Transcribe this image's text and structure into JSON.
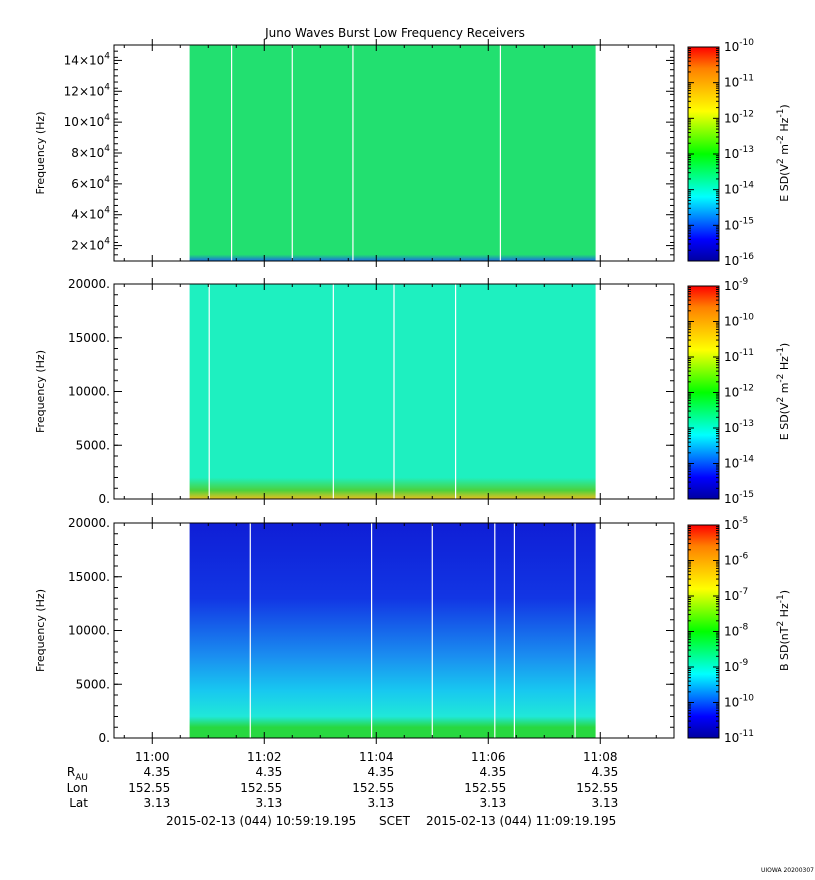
{
  "title": "Juno Waves Burst Low Frequency Receivers",
  "colors": {
    "panel1_fill": "#22e070",
    "panel2_fill": "#1ef0c0",
    "panel2_band": "#4bd23c",
    "panel3_top": "#0f1ed6",
    "panel3_mid": "#18c8f0",
    "panel3_band": "#28d840",
    "gap_line": "#ffffff",
    "colorbar_stops": [
      "#0000a0",
      "#0000ff",
      "#0080ff",
      "#00ffff",
      "#00ff80",
      "#00ff00",
      "#80ff00",
      "#ffff00",
      "#ffc000",
      "#ff8000",
      "#ff0000"
    ]
  },
  "chart_data": [
    {
      "type": "heatmap",
      "ylabel": "Frequency (Hz)",
      "y_ticks": [
        {
          "value": 20000,
          "base": "2×10",
          "exp": "4"
        },
        {
          "value": 40000,
          "base": "4×10",
          "exp": "4"
        },
        {
          "value": 60000,
          "base": "6×10",
          "exp": "4"
        },
        {
          "value": 80000,
          "base": "8×10",
          "exp": "4"
        },
        {
          "value": 100000,
          "base": "10×10",
          "exp": "4"
        },
        {
          "value": 120000,
          "base": "12×10",
          "exp": "4"
        },
        {
          "value": 140000,
          "base": "14×10",
          "exp": "4"
        }
      ],
      "ylim": [
        10000,
        150000
      ],
      "colorbar_label": "E SD(V^2 m^-2 Hz^-1)",
      "colorbar_label_parts": [
        {
          "t": "E SD(V"
        },
        {
          "t": "2",
          "sup": true
        },
        {
          "t": " m"
        },
        {
          "t": "-2",
          "sup": true
        },
        {
          "t": " Hz"
        },
        {
          "t": "-1",
          "sup": true
        },
        {
          "t": ")"
        }
      ],
      "colorbar_exponents": [
        "-16",
        "-15",
        "-14",
        "-13",
        "-12",
        "-11",
        "-10"
      ],
      "data_span": [
        "11:00:40",
        "11:07:55"
      ],
      "gap_times": [
        "11:01:25",
        "11:02:30",
        "11:03:35",
        "11:06:13"
      ]
    },
    {
      "type": "heatmap",
      "ylabel": "Frequency (Hz)",
      "y_ticks": [
        {
          "value": 0,
          "label": "0."
        },
        {
          "value": 5000,
          "label": "5000."
        },
        {
          "value": 10000,
          "label": "10000."
        },
        {
          "value": 15000,
          "label": "15000."
        },
        {
          "value": 20000,
          "label": "20000."
        }
      ],
      "ylim": [
        0,
        20000
      ],
      "colorbar_label": "E SD(V^2 m^-2 Hz^-1)",
      "colorbar_label_parts": [
        {
          "t": "E SD(V"
        },
        {
          "t": "2",
          "sup": true
        },
        {
          "t": " m"
        },
        {
          "t": "-2",
          "sup": true
        },
        {
          "t": " Hz"
        },
        {
          "t": "-1",
          "sup": true
        },
        {
          "t": ")"
        }
      ],
      "colorbar_exponents": [
        "-15",
        "-14",
        "-13",
        "-12",
        "-11",
        "-10",
        "-9"
      ],
      "data_span": [
        "11:00:40",
        "11:07:55"
      ],
      "gap_times": [
        "11:01:01",
        "11:03:14",
        "11:04:19",
        "11:05:25"
      ]
    },
    {
      "type": "heatmap",
      "ylabel": "Frequency (Hz)",
      "y_ticks": [
        {
          "value": 0,
          "label": "0."
        },
        {
          "value": 5000,
          "label": "5000."
        },
        {
          "value": 10000,
          "label": "10000."
        },
        {
          "value": 15000,
          "label": "15000."
        },
        {
          "value": 20000,
          "label": "20000."
        }
      ],
      "ylim": [
        0,
        20000
      ],
      "colorbar_label": "B SD(nT^2 Hz^-1)",
      "colorbar_label_parts": [
        {
          "t": "B SD(nT"
        },
        {
          "t": "2",
          "sup": true
        },
        {
          "t": " Hz"
        },
        {
          "t": "-1",
          "sup": true
        },
        {
          "t": ")"
        }
      ],
      "colorbar_exponents": [
        "-11",
        "-10",
        "-9",
        "-8",
        "-7",
        "-6",
        "-5"
      ],
      "data_span": [
        "11:00:40",
        "11:07:55"
      ],
      "gap_times": [
        "11:01:45",
        "11:03:55",
        "11:05:00",
        "11:06:07",
        "11:06:28",
        "11:07:33"
      ]
    }
  ],
  "x_axis": {
    "ticks": [
      "11:00",
      "11:02",
      "11:04",
      "11:06",
      "11:08"
    ],
    "range": [
      "10:59:19",
      "11:09:19"
    ]
  },
  "ephemeris": {
    "rows": [
      {
        "label": "R",
        "sub": "AU",
        "values": [
          "4.35",
          "4.35",
          "4.35",
          "4.35",
          "4.35"
        ]
      },
      {
        "label": "Lon",
        "values": [
          "152.55",
          "152.55",
          "152.55",
          "152.55",
          "152.55"
        ]
      },
      {
        "label": "Lat",
        "values": [
          "3.13",
          "3.13",
          "3.13",
          "3.13",
          "3.13"
        ]
      }
    ]
  },
  "footer": {
    "start": "2015-02-13 (044) 10:59:19.195",
    "scet": "SCET",
    "end": "2015-02-13 (044) 11:09:19.195"
  },
  "watermark": "UIOWA 20200307"
}
